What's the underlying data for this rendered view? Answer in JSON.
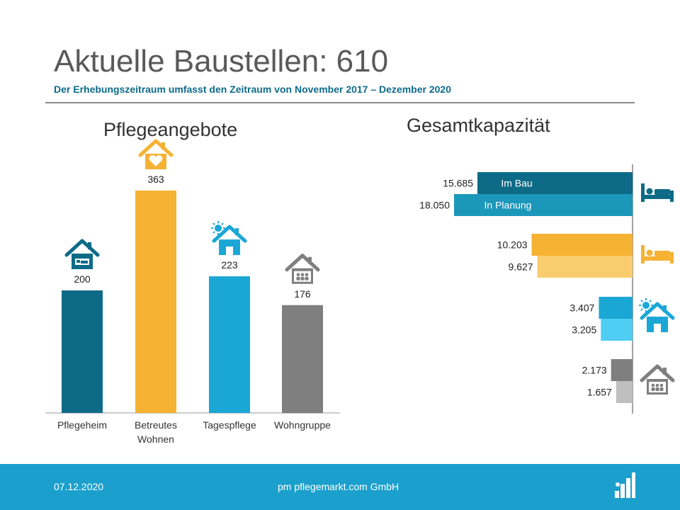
{
  "header": {
    "title": "Aktuelle Baustellen: 610",
    "subtitle": "Der Erhebungszeitraum umfasst den Zeitraum von November 2017 – Dezember 2020"
  },
  "colors": {
    "pflegeheim": "#0e6b87",
    "betreutes_wohnen": "#f5b233",
    "tagespflege": "#1ba7d6",
    "wohngruppe": "#7f7f7f",
    "pflegeheim_light": "#1b97ba",
    "betreutes_wohnen_light": "#f9cc6d",
    "tagespflege_light": "#4fcdf2",
    "wohngruppe_light": "#bfbfbf",
    "footer": "#1ba0cd"
  },
  "chart_data": [
    {
      "type": "bar",
      "title": "Pflegeangebote",
      "categories": [
        "Pflegeheim",
        "Betreutes Wohnen",
        "Tagespflege",
        "Wohngruppe"
      ],
      "values": [
        200,
        363,
        223,
        176
      ],
      "value_labels": [
        "200",
        "363",
        "223",
        "176"
      ],
      "icons": [
        "house-bed-icon",
        "house-heart-icon",
        "house-sun-icon",
        "house-people-icon"
      ],
      "ylim": [
        0,
        400
      ]
    },
    {
      "type": "bar",
      "orientation": "horizontal",
      "title": "Gesamtkapazität",
      "groups": [
        "Pflegeheim",
        "Betreutes Wohnen",
        "Tagespflege",
        "Wohngruppe"
      ],
      "icons": [
        "bed-icon",
        "bed-icon",
        "house-sun-icon",
        "house-people-icon"
      ],
      "series": [
        {
          "name": "Im Bau",
          "values": [
            15685,
            10203,
            3407,
            2173
          ],
          "labels": [
            "15.685",
            "10.203",
            "3.407",
            "2.173"
          ]
        },
        {
          "name": "In Planung",
          "values": [
            18050,
            9627,
            3205,
            1657
          ],
          "labels": [
            "18.050",
            "9.627",
            "3.205",
            "1.657"
          ]
        }
      ],
      "xlim": [
        0,
        20000
      ]
    }
  ],
  "footer": {
    "date": "07.12.2020",
    "company": "pm pflegemarkt.com GmbH",
    "logo_icon": "bar-chart-logo-icon"
  }
}
